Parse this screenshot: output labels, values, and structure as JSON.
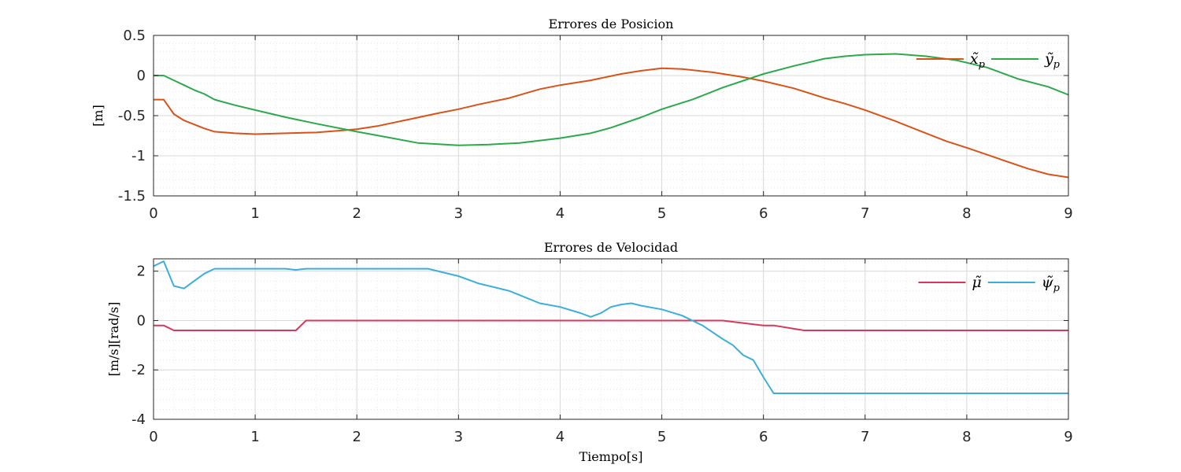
{
  "chart_data": [
    {
      "type": "line",
      "title": "Errores de Posicion",
      "xlabel": "",
      "ylabel": "[m]",
      "xlim": [
        0,
        9
      ],
      "ylim": [
        -1.5,
        0.5
      ],
      "xticks": [
        0,
        1,
        2,
        3,
        4,
        5,
        6,
        7,
        8,
        9
      ],
      "yticks": [
        -1.5,
        -1,
        -0.5,
        0,
        0.5
      ],
      "ytick_labels": [
        "-1.5",
        "-1",
        "-0.5",
        "0",
        "0.5"
      ],
      "grid": true,
      "legend_position": "top-right",
      "series": [
        {
          "name": "x̃p",
          "label_main": "x̃",
          "label_sub": "p",
          "color": "#D95319",
          "x": [
            0,
            0.1,
            0.2,
            0.3,
            0.4,
            0.5,
            0.6,
            0.8,
            1.0,
            1.3,
            1.6,
            1.8,
            2.0,
            2.2,
            2.5,
            2.8,
            3.0,
            3.2,
            3.5,
            3.8,
            4.0,
            4.3,
            4.6,
            4.8,
            5.0,
            5.2,
            5.5,
            5.8,
            6.0,
            6.3,
            6.6,
            6.8,
            7.0,
            7.3,
            7.6,
            7.8,
            8.0,
            8.3,
            8.6,
            8.8,
            9.0
          ],
          "y": [
            -0.3,
            -0.3,
            -0.48,
            -0.56,
            -0.61,
            -0.66,
            -0.7,
            -0.72,
            -0.73,
            -0.72,
            -0.71,
            -0.69,
            -0.67,
            -0.63,
            -0.55,
            -0.47,
            -0.42,
            -0.36,
            -0.28,
            -0.17,
            -0.12,
            -0.06,
            0.02,
            0.06,
            0.09,
            0.08,
            0.04,
            -0.02,
            -0.07,
            -0.16,
            -0.28,
            -0.35,
            -0.43,
            -0.57,
            -0.72,
            -0.82,
            -0.9,
            -1.03,
            -1.16,
            -1.23,
            -1.27
          ]
        },
        {
          "name": "ỹp",
          "label_main": "ỹ",
          "label_sub": "p",
          "color": "#2CA94A",
          "x": [
            0,
            0.1,
            0.2,
            0.3,
            0.4,
            0.5,
            0.6,
            0.8,
            1.0,
            1.3,
            1.6,
            2.0,
            2.3,
            2.6,
            3.0,
            3.3,
            3.6,
            4.0,
            4.3,
            4.5,
            4.8,
            5.0,
            5.3,
            5.6,
            6.0,
            6.3,
            6.6,
            6.8,
            7.0,
            7.3,
            7.6,
            7.9,
            8.2,
            8.5,
            8.8,
            9.0
          ],
          "y": [
            0.0,
            0.0,
            -0.06,
            -0.12,
            -0.18,
            -0.23,
            -0.3,
            -0.37,
            -0.43,
            -0.52,
            -0.6,
            -0.7,
            -0.77,
            -0.84,
            -0.87,
            -0.86,
            -0.84,
            -0.78,
            -0.72,
            -0.65,
            -0.52,
            -0.42,
            -0.3,
            -0.15,
            0.02,
            0.12,
            0.21,
            0.24,
            0.26,
            0.27,
            0.24,
            0.19,
            0.1,
            -0.04,
            -0.14,
            -0.24
          ]
        }
      ]
    },
    {
      "type": "line",
      "title": "Errores de Velocidad",
      "xlabel": "Tiempo[s]",
      "ylabel": "[m/s][rad/s]",
      "xlim": [
        0,
        9
      ],
      "ylim": [
        -4,
        2.5
      ],
      "xticks": [
        0,
        1,
        2,
        3,
        4,
        5,
        6,
        7,
        8,
        9
      ],
      "yticks": [
        -4,
        -2,
        0,
        2
      ],
      "ytick_labels": [
        "-4",
        "-2",
        "0",
        "2"
      ],
      "grid": true,
      "legend_position": "top-right",
      "series": [
        {
          "name": "μ̃",
          "label_main": "μ̃",
          "label_sub": "",
          "color": "#D63A5A",
          "x": [
            0,
            0.1,
            0.2,
            1.4,
            1.5,
            5.6,
            5.9,
            6.0,
            6.1,
            6.4,
            9.0
          ],
          "y": [
            -0.2,
            -0.2,
            -0.4,
            -0.4,
            0.0,
            0.0,
            -0.15,
            -0.2,
            -0.2,
            -0.4,
            -0.4
          ]
        },
        {
          "name": "ψ̃p",
          "label_main": "ψ̃",
          "label_sub": "p",
          "color": "#3BAFDA",
          "x": [
            0,
            0.1,
            0.2,
            0.3,
            0.4,
            0.5,
            0.6,
            1.0,
            1.3,
            1.4,
            1.5,
            2.7,
            3.0,
            3.2,
            3.5,
            3.8,
            4.0,
            4.2,
            4.3,
            4.4,
            4.5,
            4.6,
            4.7,
            4.8,
            5.0,
            5.2,
            5.4,
            5.6,
            5.7,
            5.8,
            5.9,
            6.0,
            6.1,
            9.0
          ],
          "y": [
            2.2,
            2.4,
            1.4,
            1.3,
            1.6,
            1.9,
            2.1,
            2.1,
            2.1,
            2.05,
            2.1,
            2.1,
            1.8,
            1.5,
            1.2,
            0.7,
            0.55,
            0.3,
            0.15,
            0.3,
            0.55,
            0.65,
            0.7,
            0.6,
            0.45,
            0.2,
            -0.2,
            -0.75,
            -1.0,
            -1.4,
            -1.6,
            -2.3,
            -2.95,
            -2.95
          ]
        }
      ]
    }
  ]
}
